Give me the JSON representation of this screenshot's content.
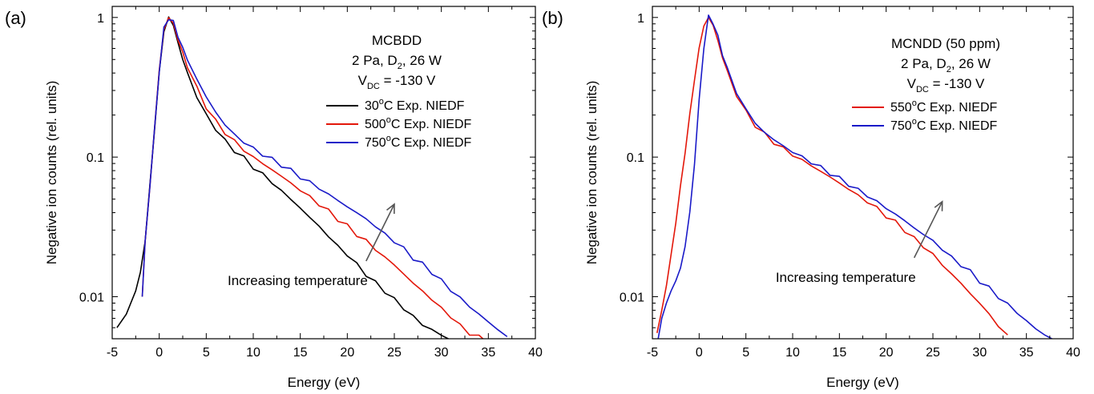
{
  "chart_data": [
    {
      "type": "line",
      "panel_label": "(a)",
      "xlabel": "Energy (eV)",
      "ylabel": "Negative ion counts (rel. units)",
      "xlim": [
        -5,
        40
      ],
      "ylim": [
        0.005,
        1.2
      ],
      "yscale": "log",
      "x_ticks": [
        -5,
        0,
        5,
        10,
        15,
        20,
        25,
        30,
        35,
        40
      ],
      "y_ticks": [
        {
          "value": 1,
          "label": "1"
        },
        {
          "value": 0.1,
          "label": "0.1"
        },
        {
          "value": 0.01,
          "label": "0.01"
        }
      ],
      "grid": false,
      "legend_position": "top-right",
      "annotation_lines": [
        {
          "type": "plain",
          "text": "MCBDD"
        },
        {
          "type": "gas",
          "prefix": "2 Pa, D",
          "sub": "2",
          "suffix": ", 26 W"
        },
        {
          "type": "vdc",
          "prefix": "V",
          "sub": "DC",
          "suffix": " = -130 V"
        }
      ],
      "arrow_annotation": "Increasing temperature",
      "arrow_from": [
        22,
        0.018
      ],
      "arrow_to": [
        25,
        0.046
      ],
      "series": [
        {
          "name": "Exp. NIEDF",
          "temp": "30",
          "deg": "o",
          "unit": "C",
          "color": "#000000",
          "x": [
            -4.5,
            -3.5,
            -2.5,
            -2,
            -1.5,
            -1,
            -0.5,
            0,
            0.5,
            1,
            1.5,
            2,
            2.5,
            3,
            4,
            5,
            6,
            7,
            8,
            9,
            10,
            11,
            12,
            13,
            14,
            15,
            16,
            17,
            18,
            19,
            20,
            21,
            22,
            23,
            24,
            25,
            26,
            27,
            28,
            29,
            30,
            31,
            32
          ],
          "y": [
            0.006,
            0.0075,
            0.011,
            0.015,
            0.026,
            0.06,
            0.16,
            0.4,
            0.8,
            1.0,
            0.88,
            0.66,
            0.5,
            0.4,
            0.27,
            0.2,
            0.16,
            0.13,
            0.112,
            0.098,
            0.085,
            0.075,
            0.066,
            0.057,
            0.05,
            0.043,
            0.037,
            0.032,
            0.027,
            0.023,
            0.02,
            0.017,
            0.0145,
            0.0125,
            0.011,
            0.0095,
            0.0083,
            0.0072,
            0.0063,
            0.0058,
            0.0053,
            0.0049,
            0.0045
          ]
        },
        {
          "name": "Exp. NIEDF",
          "temp": "500",
          "deg": "o",
          "unit": "C",
          "color": "#e3170a",
          "x": [
            -1.8,
            -1.5,
            -1,
            -0.5,
            0,
            0.5,
            1,
            1.5,
            2,
            2.5,
            3,
            4,
            5,
            6,
            7,
            8,
            9,
            10,
            11,
            12,
            13,
            14,
            15,
            16,
            17,
            18,
            19,
            20,
            21,
            22,
            23,
            24,
            25,
            26,
            27,
            28,
            29,
            30,
            31,
            32,
            33,
            34,
            35
          ],
          "y": [
            0.01,
            0.025,
            0.06,
            0.16,
            0.42,
            0.82,
            1.0,
            0.9,
            0.7,
            0.55,
            0.45,
            0.31,
            0.23,
            0.18,
            0.15,
            0.13,
            0.112,
            0.1,
            0.09,
            0.081,
            0.073,
            0.065,
            0.058,
            0.052,
            0.046,
            0.041,
            0.036,
            0.032,
            0.028,
            0.025,
            0.022,
            0.019,
            0.017,
            0.0145,
            0.0125,
            0.011,
            0.0095,
            0.0083,
            0.0072,
            0.0062,
            0.0055,
            0.0051,
            0.0048
          ]
        },
        {
          "name": "Exp. NIEDF",
          "temp": "750",
          "deg": "o",
          "unit": "C",
          "color": "#1a1ac8",
          "x": [
            -1.8,
            -1.5,
            -1,
            -0.5,
            0,
            0.5,
            1,
            1.5,
            2,
            2.5,
            3,
            4,
            5,
            6,
            7,
            8,
            9,
            10,
            11,
            12,
            13,
            14,
            15,
            16,
            17,
            18,
            19,
            20,
            21,
            22,
            23,
            24,
            25,
            26,
            27,
            28,
            29,
            30,
            31,
            32,
            33,
            34,
            35,
            36,
            37
          ],
          "y": [
            0.01,
            0.025,
            0.06,
            0.16,
            0.42,
            0.82,
            1.0,
            0.92,
            0.74,
            0.6,
            0.5,
            0.36,
            0.27,
            0.21,
            0.17,
            0.145,
            0.128,
            0.115,
            0.105,
            0.096,
            0.088,
            0.08,
            0.072,
            0.066,
            0.06,
            0.054,
            0.049,
            0.044,
            0.04,
            0.036,
            0.032,
            0.028,
            0.025,
            0.022,
            0.019,
            0.017,
            0.015,
            0.013,
            0.0112,
            0.0098,
            0.0085,
            0.0075,
            0.0066,
            0.0058,
            0.0052
          ]
        }
      ]
    },
    {
      "type": "line",
      "panel_label": "(b)",
      "xlabel": "Energy (eV)",
      "ylabel": "Negative ion counts (rel. units)",
      "xlim": [
        -5,
        40
      ],
      "ylim": [
        0.005,
        1.2
      ],
      "yscale": "log",
      "x_ticks": [
        -5,
        0,
        5,
        10,
        15,
        20,
        25,
        30,
        35,
        40
      ],
      "y_ticks": [
        {
          "value": 1,
          "label": "1"
        },
        {
          "value": 0.1,
          "label": "0.1"
        },
        {
          "value": 0.01,
          "label": "0.01"
        }
      ],
      "grid": false,
      "legend_position": "top-right",
      "annotation_lines": [
        {
          "type": "plain",
          "text": "MCNDD (50 ppm)"
        },
        {
          "type": "gas",
          "prefix": "2 Pa, D",
          "sub": "2",
          "suffix": ", 26 W"
        },
        {
          "type": "vdc",
          "prefix": "V",
          "sub": "DC",
          "suffix": " = -130 V"
        }
      ],
      "arrow_annotation": "Increasing temperature",
      "arrow_from": [
        23,
        0.019
      ],
      "arrow_to": [
        26,
        0.048
      ],
      "series": [
        {
          "name": "Exp. NIEDF",
          "temp": "550",
          "deg": "o",
          "unit": "C",
          "color": "#e3170a",
          "x": [
            -4.5,
            -4,
            -3.5,
            -3,
            -2.5,
            -2,
            -1.5,
            -1,
            -0.5,
            0,
            0.5,
            1,
            1.5,
            2,
            2.5,
            3,
            4,
            5,
            6,
            7,
            8,
            9,
            10,
            11,
            12,
            13,
            14,
            15,
            16,
            17,
            18,
            19,
            20,
            21,
            22,
            23,
            24,
            25,
            26,
            27,
            28,
            29,
            30,
            31,
            32,
            33
          ],
          "y": [
            0.0055,
            0.008,
            0.012,
            0.02,
            0.035,
            0.06,
            0.11,
            0.2,
            0.36,
            0.6,
            0.87,
            1.0,
            0.88,
            0.68,
            0.52,
            0.41,
            0.28,
            0.21,
            0.17,
            0.145,
            0.128,
            0.115,
            0.104,
            0.095,
            0.087,
            0.079,
            0.072,
            0.065,
            0.059,
            0.053,
            0.048,
            0.043,
            0.038,
            0.034,
            0.03,
            0.026,
            0.023,
            0.02,
            0.017,
            0.0145,
            0.0125,
            0.0105,
            0.009,
            0.0075,
            0.0062,
            0.0052
          ]
        },
        {
          "name": "Exp. NIEDF",
          "temp": "750",
          "deg": "o",
          "unit": "C",
          "color": "#1a1ac8",
          "x": [
            -4.5,
            -4,
            -3.5,
            -3,
            -2.5,
            -2,
            -1.5,
            -1,
            -0.5,
            0,
            0.5,
            1,
            1.5,
            2,
            2.5,
            3,
            4,
            5,
            6,
            7,
            8,
            9,
            10,
            11,
            12,
            13,
            14,
            15,
            16,
            17,
            18,
            19,
            20,
            21,
            22,
            23,
            24,
            25,
            26,
            27,
            28,
            29,
            30,
            31,
            32,
            33,
            34,
            35,
            36,
            37,
            38
          ],
          "y": [
            0.0045,
            0.007,
            0.009,
            0.011,
            0.013,
            0.016,
            0.023,
            0.04,
            0.09,
            0.25,
            0.62,
            1.0,
            0.93,
            0.72,
            0.55,
            0.43,
            0.29,
            0.22,
            0.175,
            0.15,
            0.133,
            0.12,
            0.109,
            0.1,
            0.092,
            0.084,
            0.077,
            0.07,
            0.064,
            0.058,
            0.053,
            0.048,
            0.043,
            0.039,
            0.035,
            0.031,
            0.028,
            0.025,
            0.022,
            0.019,
            0.017,
            0.015,
            0.013,
            0.0115,
            0.01,
            0.0088,
            0.0077,
            0.0067,
            0.0059,
            0.0053,
            0.0049
          ]
        }
      ]
    }
  ]
}
